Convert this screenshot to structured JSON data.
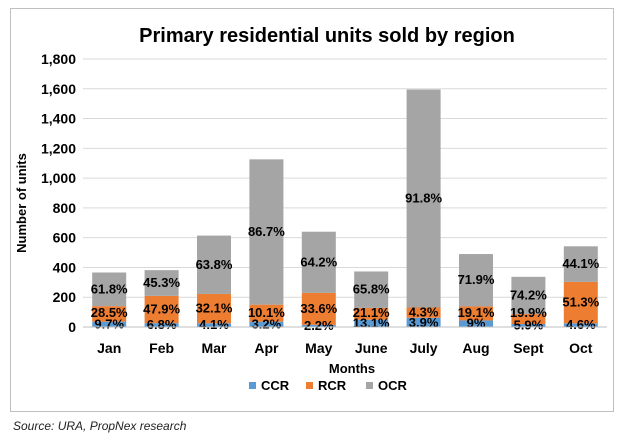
{
  "chart_data": {
    "type": "bar",
    "stacked": true,
    "title": "Primary residential units sold by region",
    "xlabel": "Months",
    "ylabel": "Number of units",
    "ylim": [
      0,
      1800
    ],
    "yticks": [
      "0",
      "200",
      "400",
      "600",
      "800",
      "1,000",
      "1,200",
      "1,400",
      "1,600",
      "1,800"
    ],
    "grid": true,
    "legend_position": "bottom",
    "categories": [
      "Jan",
      "Feb",
      "Mar",
      "Apr",
      "May",
      "June",
      "July",
      "Aug",
      "Sept",
      "Oct"
    ],
    "series": [
      {
        "name": "CCR",
        "color": "#5b9bd5",
        "values": [
          36,
          26,
          25,
          36,
          14,
          49,
          62,
          44,
          20,
          25
        ],
        "labels": [
          "9.7%",
          "6.8%",
          "4.1%",
          "3.2%",
          "2.2%",
          "13.1%",
          "3.9%",
          "9%",
          "5.9%",
          "4.6%"
        ]
      },
      {
        "name": "RCR",
        "color": "#ed7d31",
        "values": [
          104,
          183,
          197,
          114,
          215,
          79,
          69,
          94,
          67,
          278
        ],
        "labels": [
          "28.5%",
          "47.9%",
          "32.1%",
          "10.1%",
          "33.6%",
          "21.1%",
          "4.3%",
          "19.1%",
          "19.9%",
          "51.3%"
        ]
      },
      {
        "name": "OCR",
        "color": "#a5a5a5",
        "values": [
          226,
          173,
          392,
          976,
          411,
          245,
          1464,
          352,
          250,
          239
        ],
        "labels": [
          "61.8%",
          "45.3%",
          "63.8%",
          "86.7%",
          "64.2%",
          "65.8%",
          "91.8%",
          "71.9%",
          "74.2%",
          "44.1%"
        ]
      }
    ]
  },
  "source": "Source: URA, PropNex research"
}
